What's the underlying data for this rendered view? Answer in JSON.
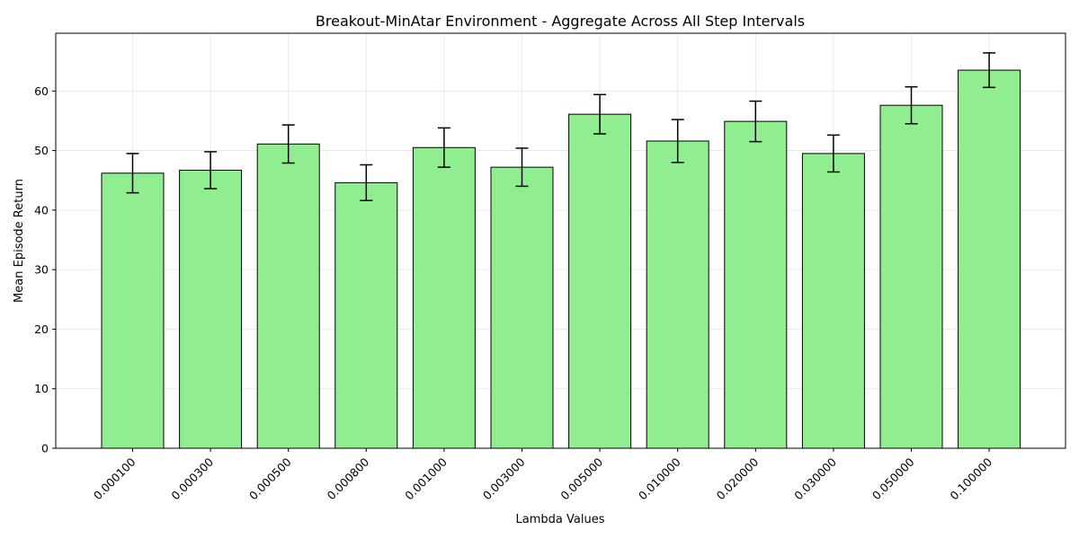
{
  "chart_data": {
    "type": "bar",
    "title": "Breakout-MinAtar Environment - Aggregate Across All Step Intervals",
    "xlabel": "Lambda Values",
    "ylabel": "Mean Episode Return",
    "categories": [
      "0.000100",
      "0.000300",
      "0.000500",
      "0.000800",
      "0.001000",
      "0.003000",
      "0.005000",
      "0.010000",
      "0.020000",
      "0.030000",
      "0.050000",
      "0.100000"
    ],
    "values": [
      46.2,
      46.7,
      51.1,
      44.6,
      50.5,
      47.2,
      56.1,
      51.6,
      54.9,
      49.5,
      57.6,
      63.5
    ],
    "errors": [
      3.3,
      3.1,
      3.2,
      3.0,
      3.3,
      3.2,
      3.3,
      3.6,
      3.4,
      3.1,
      3.1,
      2.9
    ],
    "ylim": [
      0,
      69.7
    ],
    "yticks": [
      0,
      10,
      20,
      30,
      40,
      50,
      60
    ],
    "grid": true,
    "bar_color": "#90ee90",
    "edge_color": "#000000"
  }
}
